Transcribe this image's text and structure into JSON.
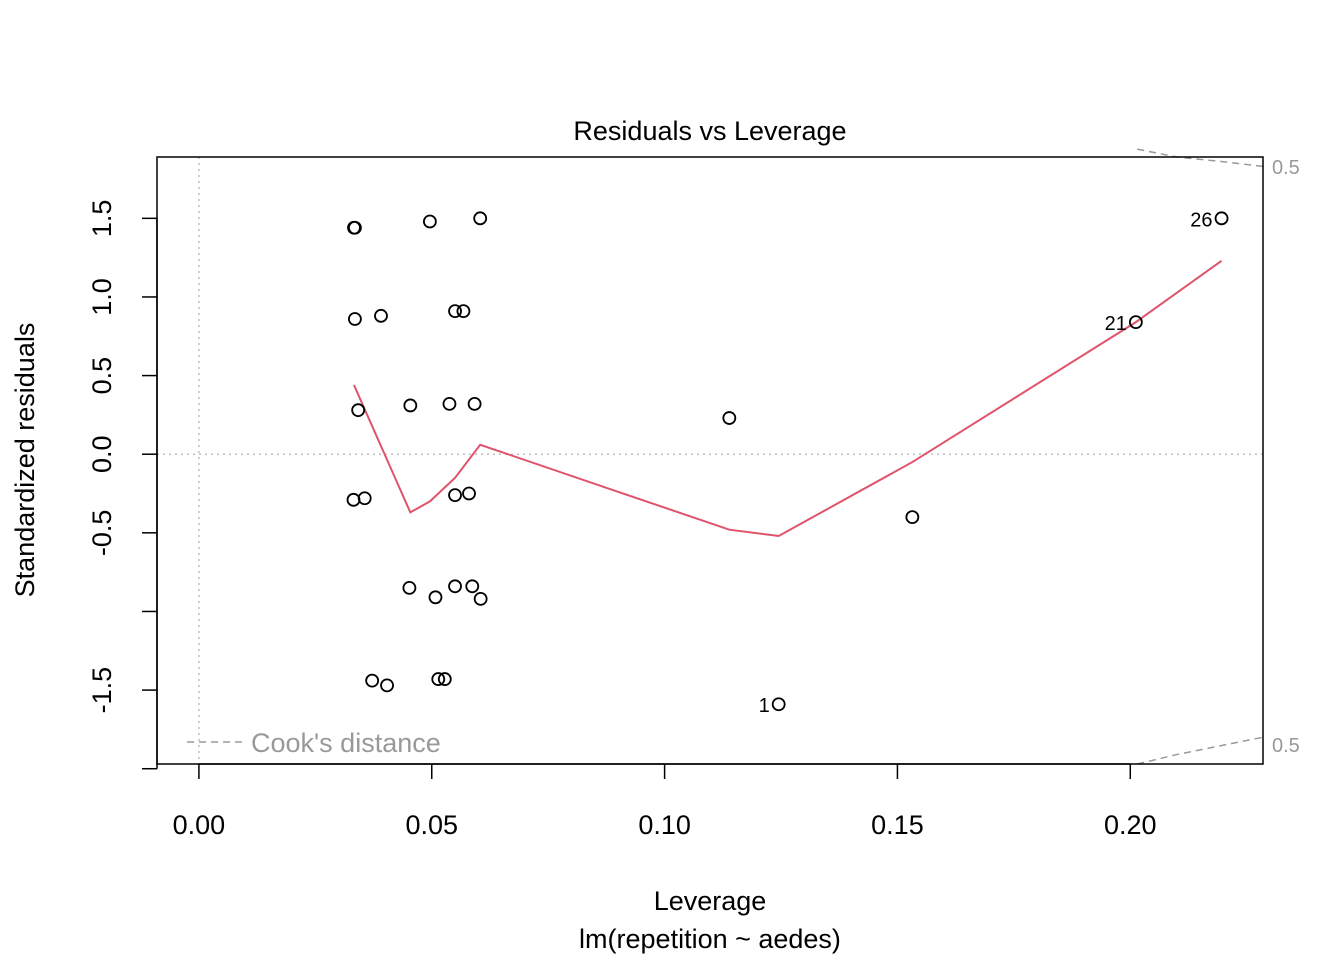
{
  "chart_data": {
    "type": "scatter",
    "title": "Residuals vs Leverage",
    "xlabel": "Leverage",
    "ylabel": "Standardized residuals",
    "subtitle": "lm(repetition ~ aedes)",
    "xlim": [
      -0.009,
      0.2285
    ],
    "ylim": [
      -1.97,
      1.89
    ],
    "x_ticks": [
      0.0,
      0.05,
      0.1,
      0.15,
      0.2
    ],
    "x_tick_labels": [
      "0.00",
      "0.05",
      "0.10",
      "0.15",
      "0.20"
    ],
    "y_ticks": [
      -2.0,
      -1.5,
      -1.0,
      -0.5,
      0.0,
      0.5,
      1.0,
      1.5
    ],
    "y_tick_labels": [
      "",
      "-1.5",
      "",
      "-0.5",
      "0.0",
      "0.5",
      "1.0",
      "1.5"
    ],
    "grid": false,
    "reference_lines": {
      "x": 0,
      "y": 0
    },
    "colors": {
      "points": "#000000",
      "smooth": "#DF536B",
      "reference": "#BEBEBE",
      "cook": "#999999"
    },
    "points": [
      {
        "x": 0.0333,
        "y": 1.44
      },
      {
        "x": 0.0335,
        "y": 1.44
      },
      {
        "x": 0.0496,
        "y": 1.48
      },
      {
        "x": 0.0604,
        "y": 1.5
      },
      {
        "x": 0.2196,
        "y": 1.5,
        "label": "26"
      },
      {
        "x": 0.0335,
        "y": 0.86
      },
      {
        "x": 0.0391,
        "y": 0.88
      },
      {
        "x": 0.055,
        "y": 0.91
      },
      {
        "x": 0.0568,
        "y": 0.91
      },
      {
        "x": 0.2012,
        "y": 0.84,
        "label": "21"
      },
      {
        "x": 0.0342,
        "y": 0.28
      },
      {
        "x": 0.0454,
        "y": 0.31
      },
      {
        "x": 0.0538,
        "y": 0.32
      },
      {
        "x": 0.0592,
        "y": 0.32
      },
      {
        "x": 0.1139,
        "y": 0.23
      },
      {
        "x": 0.0332,
        "y": -0.29
      },
      {
        "x": 0.0356,
        "y": -0.28
      },
      {
        "x": 0.055,
        "y": -0.26
      },
      {
        "x": 0.058,
        "y": -0.25
      },
      {
        "x": 0.1532,
        "y": -0.4
      },
      {
        "x": 0.0452,
        "y": -0.85
      },
      {
        "x": 0.0508,
        "y": -0.91
      },
      {
        "x": 0.055,
        "y": -0.84
      },
      {
        "x": 0.0587,
        "y": -0.84
      },
      {
        "x": 0.0605,
        "y": -0.92
      },
      {
        "x": 0.0372,
        "y": -1.44
      },
      {
        "x": 0.0404,
        "y": -1.47
      },
      {
        "x": 0.0514,
        "y": -1.43
      },
      {
        "x": 0.0528,
        "y": -1.43
      },
      {
        "x": 0.1245,
        "y": -1.59,
        "label": "1"
      }
    ],
    "smooth": {
      "x": [
        0.0333,
        0.0454,
        0.0496,
        0.055,
        0.0604,
        0.1139,
        0.1245,
        0.1532,
        0.2012,
        0.2196
      ],
      "y": [
        0.44,
        -0.37,
        -0.3,
        -0.15,
        0.06,
        -0.48,
        -0.52,
        -0.05,
        0.84,
        1.23
      ]
    },
    "cooks_distance": {
      "legend": "Cook's distance",
      "levels": [
        "0.5",
        "0.5"
      ],
      "upper": {
        "x": [
          0.2015,
          0.21,
          0.22,
          0.2285
        ],
        "y": [
          1.94,
          1.89,
          1.86,
          1.83
        ]
      },
      "lower": {
        "x": [
          0.2015,
          0.21,
          0.22,
          0.2285
        ],
        "y": [
          -1.97,
          -1.91,
          -1.85,
          -1.8
        ]
      }
    }
  }
}
